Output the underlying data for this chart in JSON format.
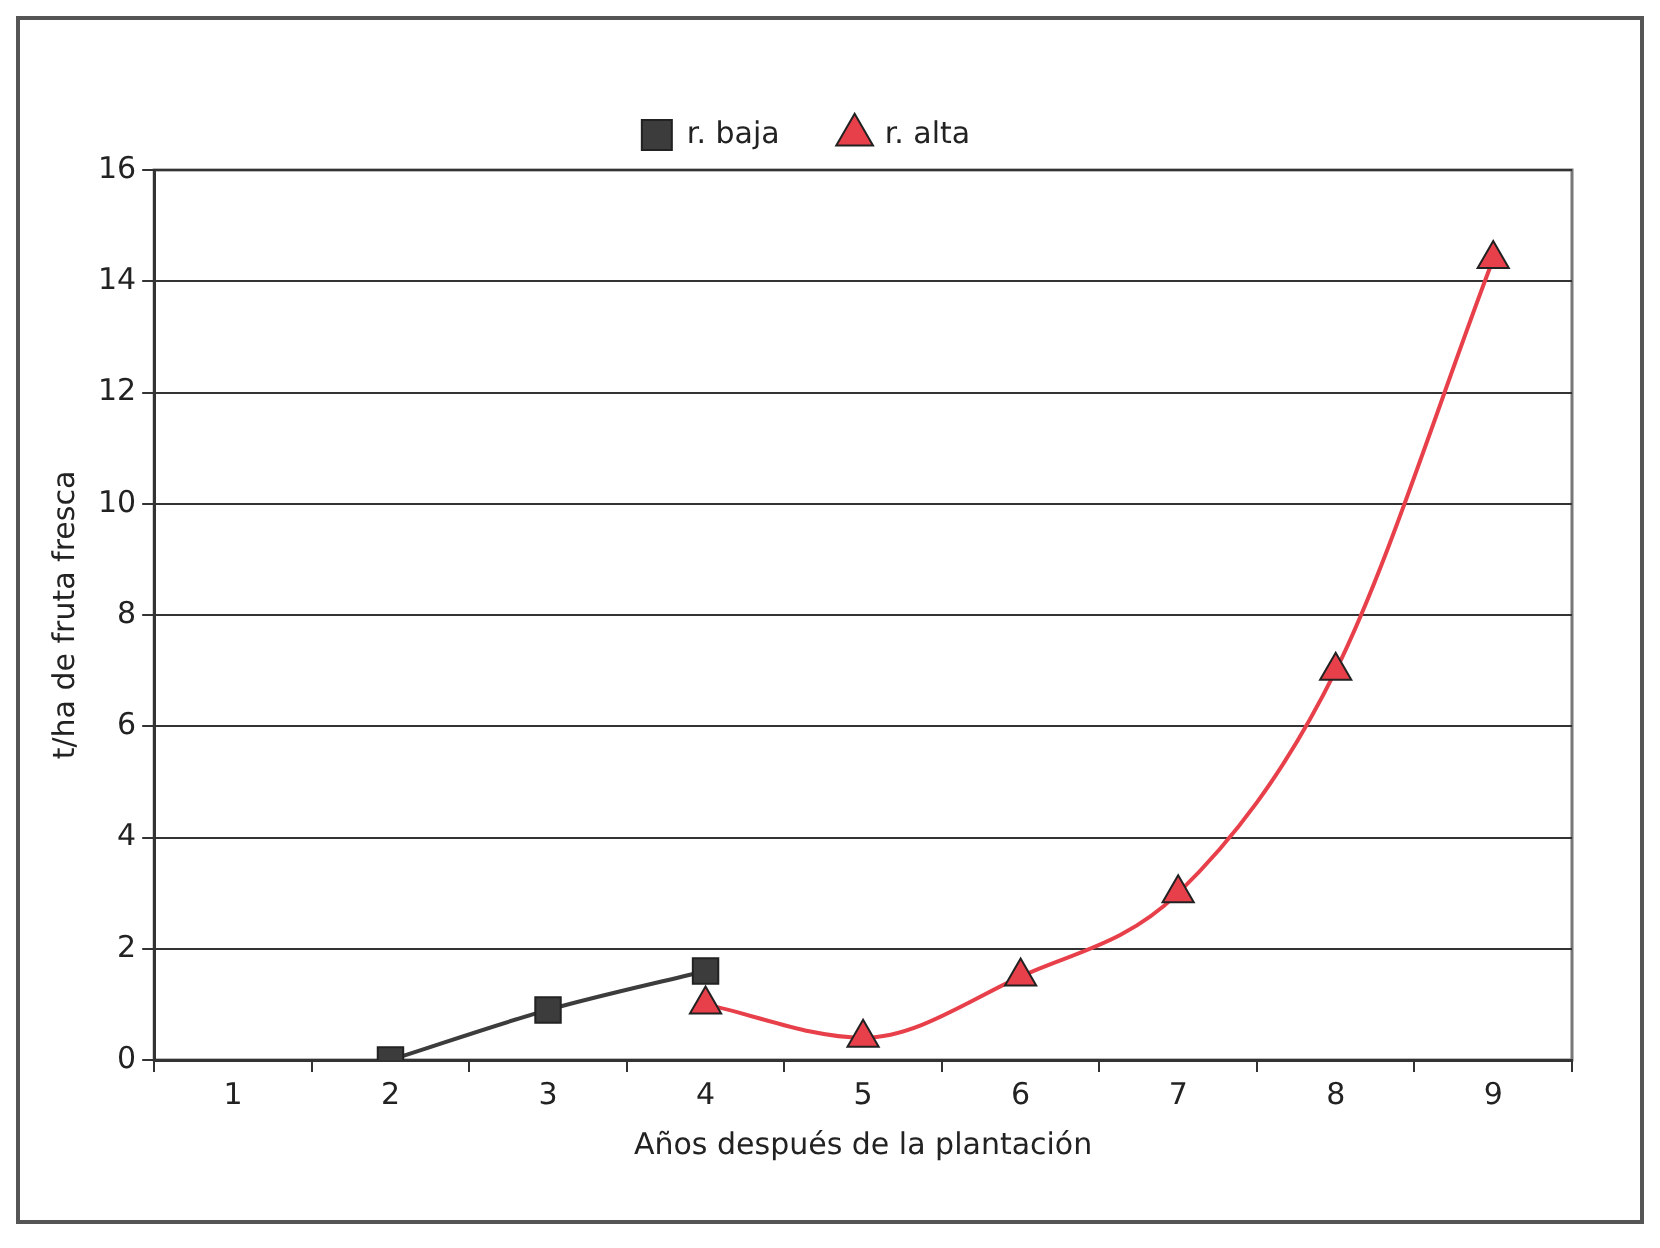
{
  "chart_data": {
    "type": "line",
    "xlabel": "Años después de la plantación",
    "ylabel": "t/ha de fruta fresca",
    "categories": [
      "1",
      "2",
      "3",
      "4",
      "5",
      "6",
      "7",
      "8",
      "9"
    ],
    "series": [
      {
        "name": "r. baja",
        "color": "#3c3c3c",
        "marker": "square",
        "values": [
          null,
          0,
          0.9,
          1.6,
          null,
          null,
          null,
          null,
          null
        ]
      },
      {
        "name": "r. alta",
        "color": "#e8404a",
        "marker": "triangle",
        "values": [
          null,
          null,
          null,
          1.0,
          0.4,
          1.5,
          3.0,
          7.0,
          14.4
        ]
      }
    ],
    "ylim": [
      0,
      16
    ],
    "yticks": [
      0,
      2,
      4,
      6,
      8,
      10,
      12,
      14,
      16
    ],
    "grid": "y",
    "legend": "top"
  }
}
